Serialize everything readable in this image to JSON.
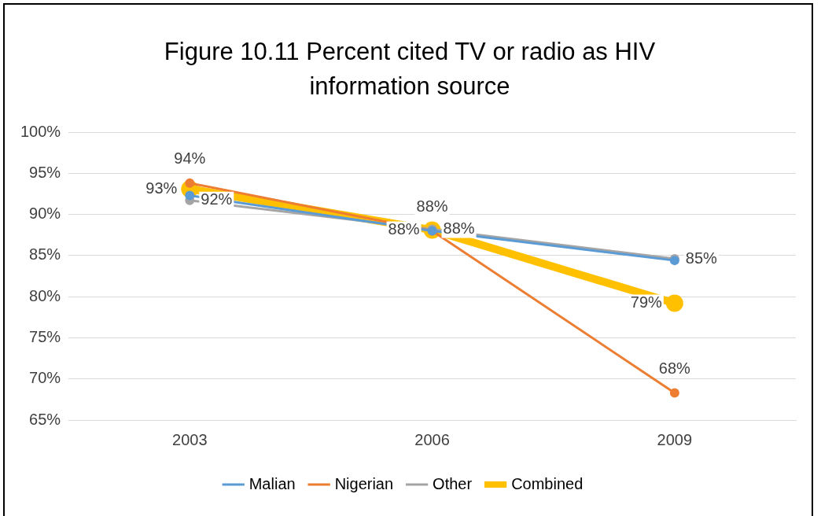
{
  "chart_data": {
    "type": "line",
    "title": "Figure 10.11 Percent cited TV or radio as HIV information source",
    "categories": [
      "2003",
      "2006",
      "2009"
    ],
    "series": [
      {
        "name": "Malian",
        "color": "#5b9bd5",
        "values": [
          92.3,
          88,
          84.4
        ]
      },
      {
        "name": "Nigerian",
        "color": "#ed7d31",
        "values": [
          93.8,
          88,
          68.3
        ],
        "value_labels": [
          "94%",
          "88%",
          "68%"
        ]
      },
      {
        "name": "Other",
        "color": "#a5a5a5",
        "values": [
          91.7,
          88.2,
          84.6
        ],
        "value_labels": [
          "92%",
          "88%",
          "85%"
        ]
      },
      {
        "name": "Combined",
        "color": "#ffc000",
        "values": [
          93.1,
          88.1,
          79.2
        ],
        "value_labels": [
          "93%",
          "88%",
          "79%"
        ]
      }
    ],
    "ylim": [
      65,
      100
    ],
    "yticks": [
      {
        "value": 65,
        "label": "65%"
      },
      {
        "value": 70,
        "label": "70%"
      },
      {
        "value": 75,
        "label": "75%"
      },
      {
        "value": 80,
        "label": "80%"
      },
      {
        "value": 85,
        "label": "85%"
      },
      {
        "value": 90,
        "label": "90%"
      },
      {
        "value": 95,
        "label": "95%"
      },
      {
        "value": 100,
        "label": "100%"
      }
    ],
    "grid": "y",
    "legend": "bottom",
    "marker": "circle",
    "line_style": "solid"
  }
}
